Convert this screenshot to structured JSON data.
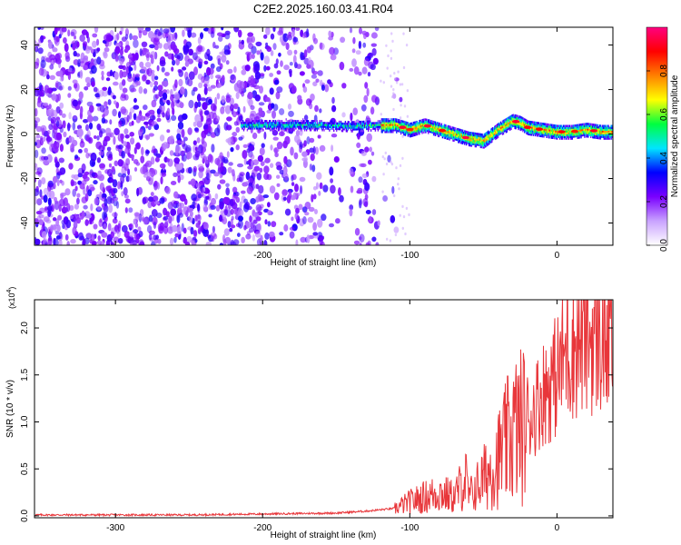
{
  "title": "C2E2.2025.160.03.41.R04",
  "chart_data": [
    {
      "type": "heatmap",
      "xlabel": "Height of straight line (km)",
      "ylabel": "Frequency (Hz)",
      "xlim": [
        -355,
        38
      ],
      "ylim": [
        -50,
        48
      ],
      "x_ticks": [
        -300,
        -200,
        -100,
        0
      ],
      "y_ticks": [
        -40,
        -20,
        0,
        20,
        40
      ],
      "colorbar": {
        "label": "Normalized spectral amplitude",
        "range": [
          0.0,
          1.0
        ],
        "ticks": [
          0.0,
          0.2,
          0.4,
          0.6,
          0.8
        ],
        "colors": [
          "#ffffff",
          "#c9a3ff",
          "#7a00ff",
          "#0000ff",
          "#00e5ff",
          "#00ff40",
          "#ffff00",
          "#ff8000",
          "#ff0000",
          "#ff0080"
        ]
      },
      "ridge": {
        "x": [
          -215,
          -200,
          -180,
          -160,
          -140,
          -120,
          -110,
          -100,
          -90,
          -80,
          -70,
          -60,
          -50,
          -40,
          -30,
          -25,
          -20,
          -10,
          0,
          10,
          20,
          30,
          38
        ],
        "y": [
          4,
          4,
          4,
          4,
          3.5,
          4,
          4,
          2,
          4,
          2,
          0,
          -2,
          -3,
          2,
          6,
          5,
          3,
          2,
          1,
          1,
          2,
          1,
          1
        ]
      },
      "noise_region_x": [
        -355,
        -120
      ],
      "grid": false
    },
    {
      "type": "line",
      "xlabel": "Height of straight line (km)",
      "ylabel": "SNR (10 * v/v)",
      "y_multiplier": "(x10",
      "y_multiplier_exp": "4",
      "y_multiplier_close": ")",
      "xlim": [
        -355,
        38
      ],
      "ylim": [
        -0.02,
        2.3
      ],
      "x_ticks": [
        -300,
        -200,
        -100,
        0
      ],
      "y_ticks": [
        0.0,
        0.5,
        1.0,
        1.5,
        2.0
      ],
      "y_tick_labels": [
        "0.0",
        "0.5",
        "1.0",
        "1.5",
        "2.0"
      ],
      "color": "#e8363a",
      "series": [
        {
          "x": [
            -355,
            -300,
            -250,
            -200,
            -150,
            -130,
            -110,
            -100,
            -90,
            -80,
            -70,
            -62,
            -60,
            -50,
            -40,
            -30,
            -20,
            -15,
            -10,
            0,
            5,
            10,
            15,
            20,
            25,
            30,
            38
          ],
          "y": [
            0.01,
            0.01,
            0.01,
            0.02,
            0.03,
            0.05,
            0.08,
            0.15,
            0.2,
            0.25,
            0.2,
            0.4,
            0.2,
            0.4,
            0.6,
            0.9,
            1.0,
            1.15,
            1.3,
            1.5,
            1.7,
            1.8,
            1.85,
            1.9,
            1.9,
            1.88,
            1.85
          ]
        }
      ],
      "grid": false
    }
  ]
}
